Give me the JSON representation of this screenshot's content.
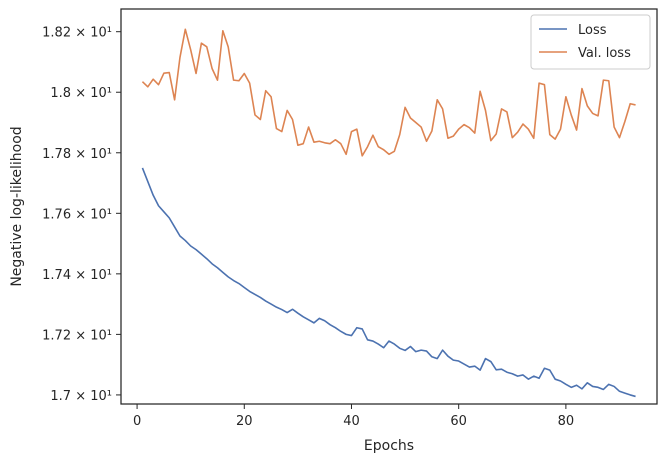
{
  "chart_data": {
    "type": "line",
    "xlabel": "Epochs",
    "ylabel": "Negative log-likelihood",
    "xlim": [
      -3,
      97
    ],
    "ylim": [
      16.97,
      18.275
    ],
    "grid": false,
    "legend_position": "top-right",
    "x_ticks": [
      {
        "value": 0,
        "label": "0"
      },
      {
        "value": 20,
        "label": "20"
      },
      {
        "value": 40,
        "label": "40"
      },
      {
        "value": 60,
        "label": "60"
      },
      {
        "value": 80,
        "label": "80"
      }
    ],
    "y_ticks": [
      {
        "value": 17.0,
        "label": "1.7 × 10¹"
      },
      {
        "value": 17.2,
        "label": "1.72 × 10¹"
      },
      {
        "value": 17.4,
        "label": "1.74 × 10¹"
      },
      {
        "value": 17.6,
        "label": "1.76 × 10¹"
      },
      {
        "value": 17.8,
        "label": "1.78 × 10¹"
      },
      {
        "value": 18.0,
        "label": "1.8 × 10¹"
      },
      {
        "value": 18.2,
        "label": "1.82 × 10¹"
      }
    ],
    "series": [
      {
        "name": "Loss",
        "color": "#4c72b0",
        "x_start": 1,
        "values": [
          17.75,
          17.705,
          17.66,
          17.625,
          17.605,
          17.585,
          17.555,
          17.525,
          17.51,
          17.492,
          17.48,
          17.465,
          17.45,
          17.433,
          17.42,
          17.405,
          17.39,
          17.378,
          17.368,
          17.355,
          17.342,
          17.332,
          17.322,
          17.31,
          17.3,
          17.29,
          17.282,
          17.272,
          17.283,
          17.27,
          17.258,
          17.248,
          17.238,
          17.253,
          17.245,
          17.232,
          17.222,
          17.21,
          17.2,
          17.196,
          17.222,
          17.218,
          17.182,
          17.178,
          17.168,
          17.156,
          17.178,
          17.168,
          17.154,
          17.147,
          17.16,
          17.143,
          17.148,
          17.145,
          17.126,
          17.12,
          17.148,
          17.128,
          17.115,
          17.112,
          17.102,
          17.092,
          17.095,
          17.082,
          17.12,
          17.11,
          17.083,
          17.085,
          17.075,
          17.07,
          17.062,
          17.066,
          17.052,
          17.062,
          17.055,
          17.088,
          17.082,
          17.052,
          17.046,
          17.035,
          17.025,
          17.032,
          17.02,
          17.04,
          17.028,
          17.025,
          17.018,
          17.035,
          17.028,
          17.012,
          17.006,
          17.0,
          16.995
        ]
      },
      {
        "name": "Val. loss",
        "color": "#dd8452",
        "x_start": 1,
        "values": [
          18.035,
          18.018,
          18.043,
          18.025,
          18.063,
          18.065,
          17.975,
          18.115,
          18.208,
          18.14,
          18.062,
          18.162,
          18.15,
          18.078,
          18.04,
          18.203,
          18.15,
          18.04,
          18.038,
          18.062,
          18.03,
          17.925,
          17.91,
          18.005,
          17.985,
          17.88,
          17.87,
          17.94,
          17.91,
          17.825,
          17.83,
          17.885,
          17.835,
          17.838,
          17.833,
          17.83,
          17.843,
          17.83,
          17.795,
          17.87,
          17.878,
          17.79,
          17.82,
          17.858,
          17.82,
          17.81,
          17.795,
          17.805,
          17.86,
          17.95,
          17.915,
          17.9,
          17.885,
          17.838,
          17.872,
          17.975,
          17.945,
          17.848,
          17.855,
          17.878,
          17.893,
          17.883,
          17.865,
          18.003,
          17.94,
          17.84,
          17.862,
          17.945,
          17.935,
          17.85,
          17.868,
          17.895,
          17.878,
          17.848,
          18.03,
          18.025,
          17.86,
          17.845,
          17.878,
          17.985,
          17.925,
          17.875,
          18.012,
          17.955,
          17.93,
          17.922,
          18.04,
          18.038,
          17.885,
          17.85,
          17.903,
          17.962,
          17.958
        ]
      }
    ]
  }
}
